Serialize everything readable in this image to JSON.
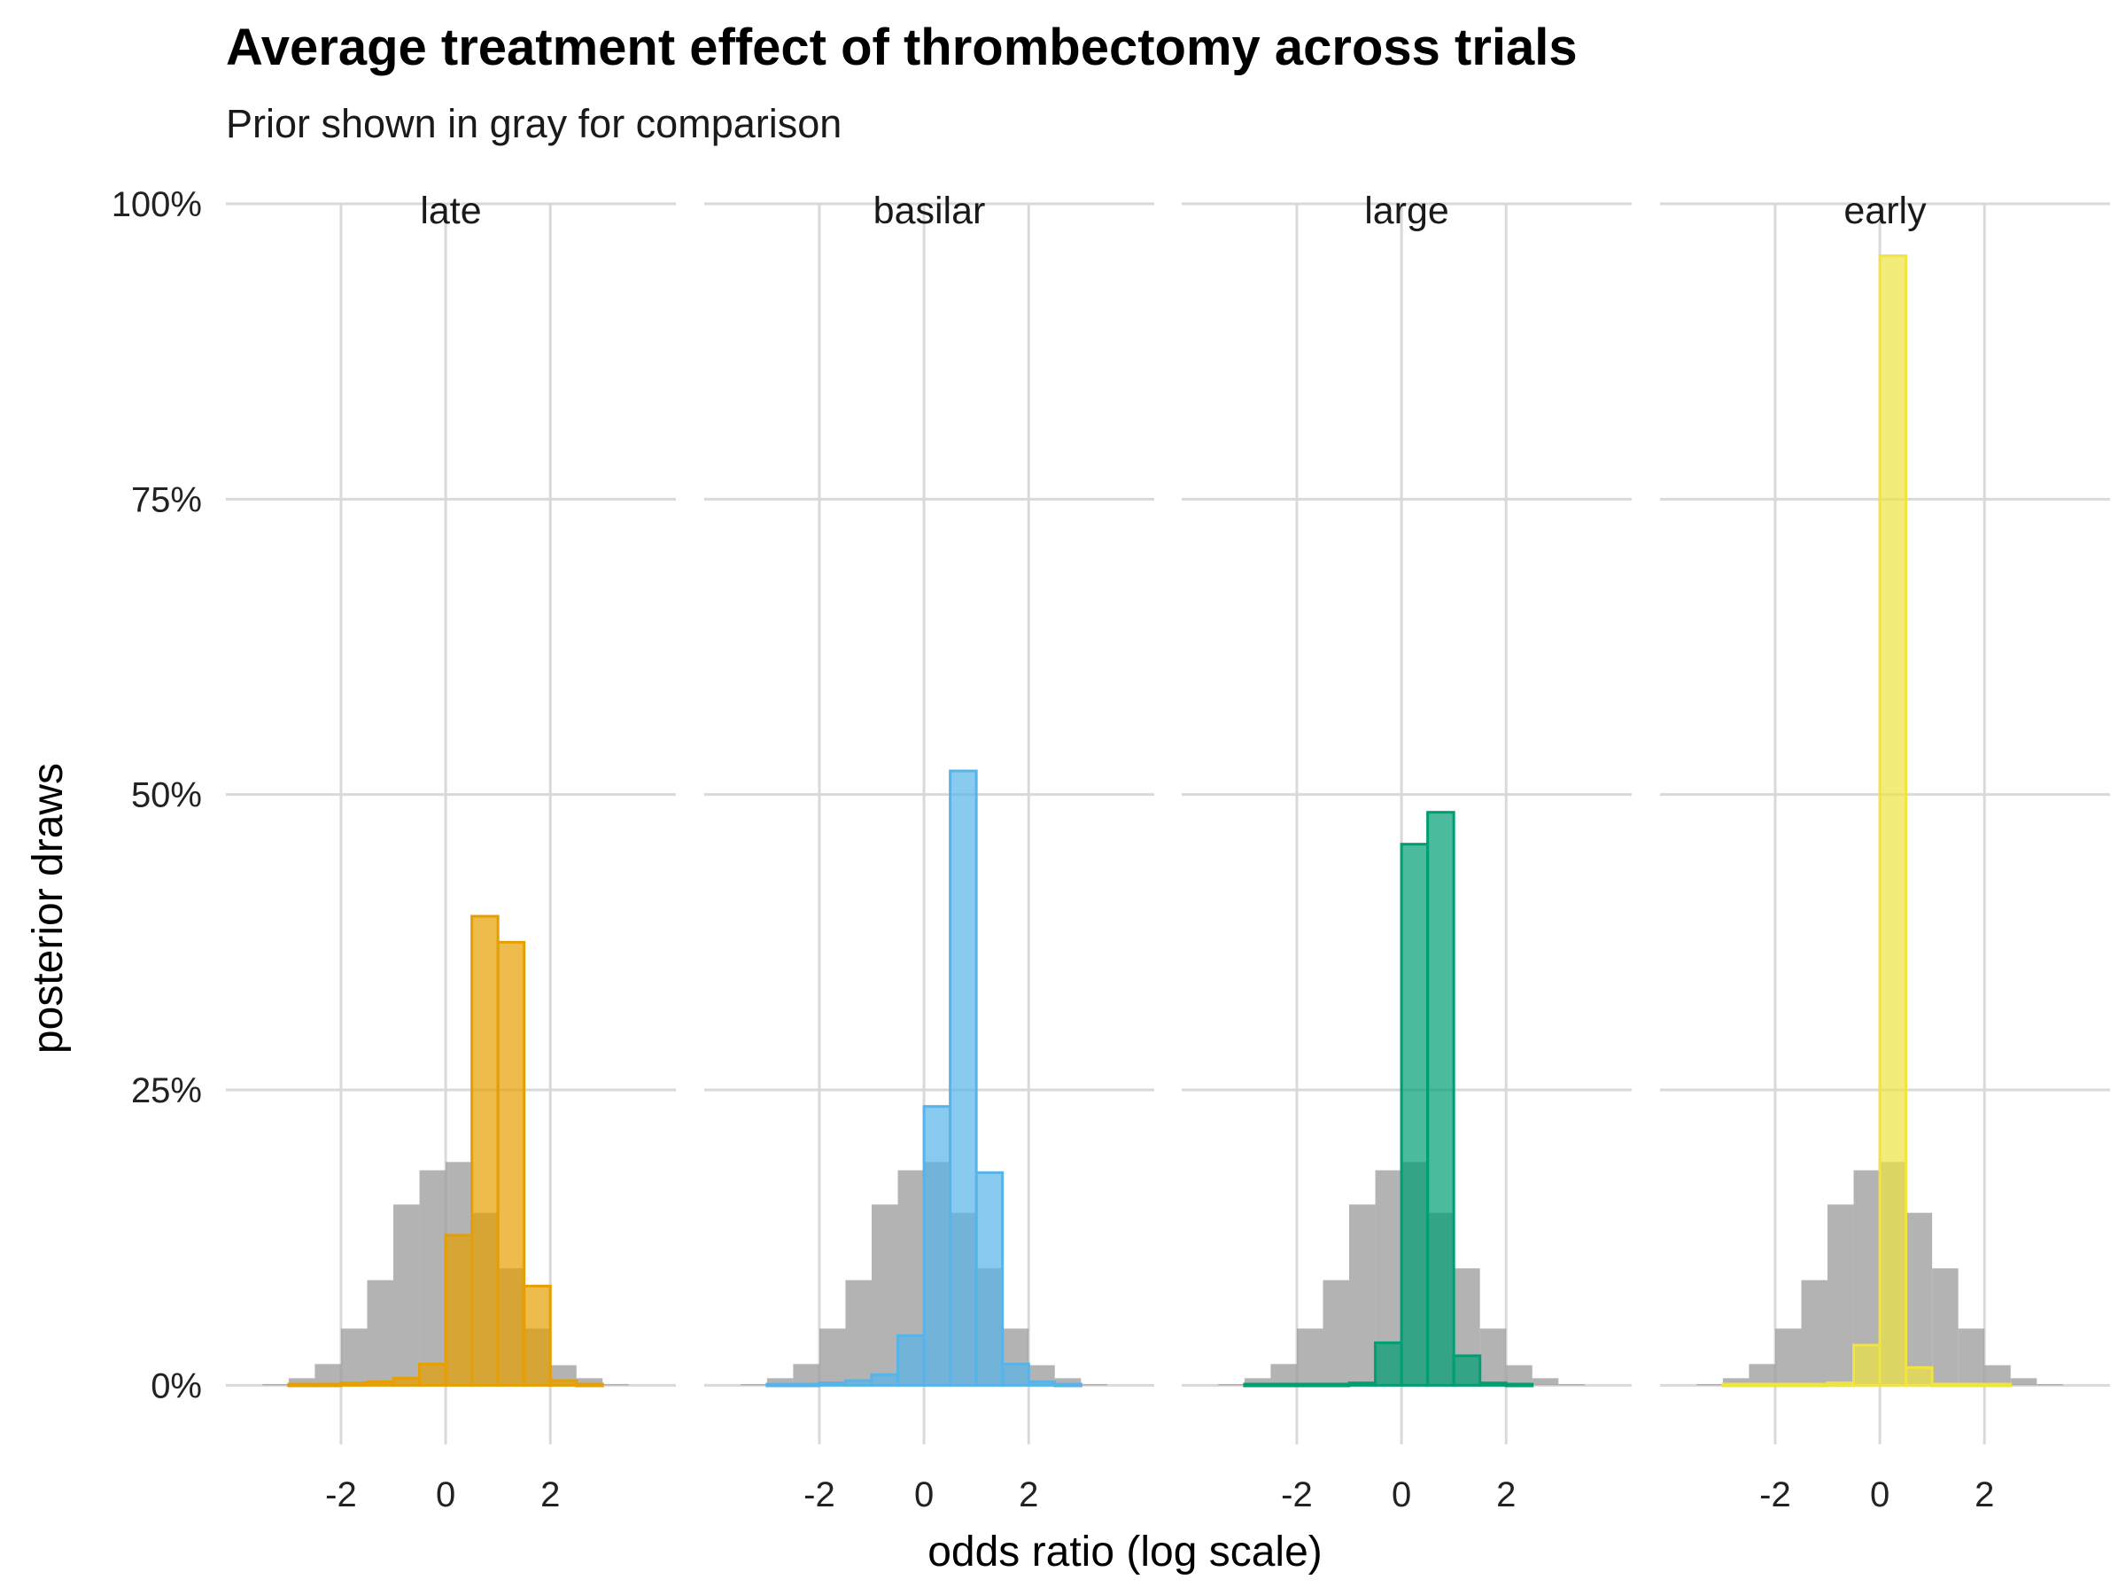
{
  "chart_data": {
    "type": "bar",
    "title": "Average treatment effect of thrombectomy across trials",
    "subtitle": "Prior shown in gray for comparison",
    "xlabel": "odds ratio (log scale)",
    "ylabel": "posterior draws",
    "xlim": [
      -4.2,
      4.4
    ],
    "ylim": [
      -0.05,
      1.0
    ],
    "x_ticks": [
      -2,
      0,
      2
    ],
    "x_tick_labels": [
      "-2",
      "0",
      "2"
    ],
    "y_ticks": [
      0,
      0.25,
      0.5,
      0.75,
      1.0
    ],
    "y_tick_labels": [
      "0%",
      "25%",
      "50%",
      "75%",
      "100%"
    ],
    "bin_width": 0.5,
    "bins": [
      -3.25,
      -2.75,
      -2.25,
      -1.75,
      -1.25,
      -0.75,
      -0.25,
      0.25,
      0.75,
      1.25,
      1.75,
      2.25,
      2.75,
      3.25
    ],
    "legend": "none",
    "grid": true,
    "prior": {
      "name": "prior",
      "color": "#999999",
      "values": [
        0.001,
        0.006,
        0.018,
        0.048,
        0.089,
        0.153,
        0.182,
        0.189,
        0.146,
        0.099,
        0.048,
        0.017,
        0.006,
        0.001
      ]
    },
    "panels": [
      {
        "label": "late",
        "color": "#E69F00",
        "values": [
          0.0,
          0.001,
          0.001,
          0.002,
          0.003,
          0.006,
          0.018,
          0.127,
          0.397,
          0.375,
          0.084,
          0.004,
          0.001,
          0.0
        ]
      },
      {
        "label": "basilar",
        "color": "#56B4E9",
        "values": [
          0.0,
          0.001,
          0.001,
          0.002,
          0.004,
          0.009,
          0.042,
          0.236,
          0.52,
          0.18,
          0.018,
          0.003,
          0.001,
          0.0
        ]
      },
      {
        "label": "large",
        "color": "#009E73",
        "values": [
          0.0,
          0.001,
          0.001,
          0.001,
          0.001,
          0.002,
          0.036,
          0.458,
          0.485,
          0.025,
          0.002,
          0.001,
          0.0,
          0.0
        ]
      },
      {
        "label": "early",
        "color": "#F0E442",
        "values": [
          0.0,
          0.001,
          0.001,
          0.001,
          0.001,
          0.002,
          0.034,
          0.956,
          0.015,
          0.001,
          0.001,
          0.001,
          0.0,
          0.0
        ]
      }
    ]
  }
}
